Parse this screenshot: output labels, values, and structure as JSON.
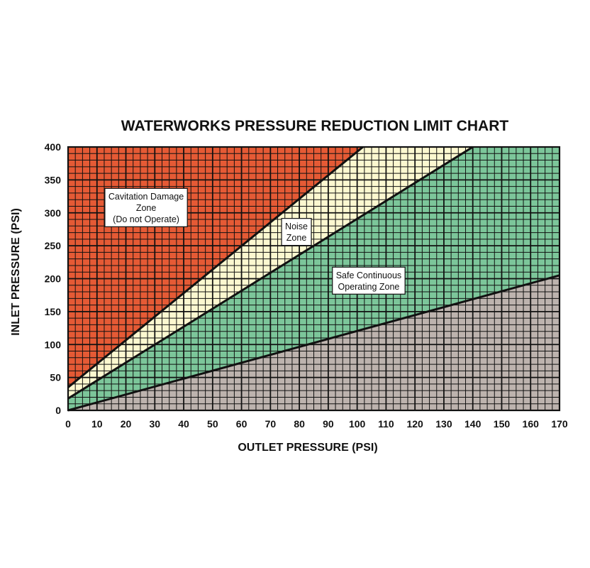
{
  "chart_data": {
    "type": "area",
    "title": "WATERWORKS PRESSURE REDUCTION LIMIT CHART",
    "xlabel": "OUTLET PRESSURE (PSI)",
    "ylabel": "INLET PRESSURE (PSI)",
    "xlim": [
      0,
      170
    ],
    "ylim": [
      0,
      400
    ],
    "x_ticks": [
      0,
      10,
      20,
      30,
      40,
      50,
      60,
      70,
      80,
      90,
      100,
      110,
      120,
      130,
      140,
      150,
      160,
      170
    ],
    "y_ticks": [
      0,
      50,
      100,
      150,
      200,
      250,
      300,
      350,
      400
    ],
    "grid": true,
    "boundaries": [
      {
        "points": [
          [
            0,
            35
          ],
          [
            102,
            400
          ]
        ]
      },
      {
        "points": [
          [
            0,
            18
          ],
          [
            140,
            400
          ]
        ]
      },
      {
        "points": [
          [
            0,
            0
          ],
          [
            170,
            205
          ]
        ]
      }
    ],
    "zones": [
      {
        "label_lines": [
          "Cavitation Damage",
          "Zone",
          "(Do not Operate)"
        ],
        "color": "#E55A35",
        "label_at": [
          27,
          308
        ]
      },
      {
        "label_lines": [
          "Noise",
          "Zone"
        ],
        "color": "#FCF8D0",
        "label_at": [
          79,
          271
        ]
      },
      {
        "label_lines": [
          "Safe Continuous",
          "Operating Zone"
        ],
        "color": "#7CC69A",
        "label_at": [
          104,
          197
        ]
      },
      {
        "label_lines": [],
        "color": "#BDB3AE"
      }
    ]
  }
}
